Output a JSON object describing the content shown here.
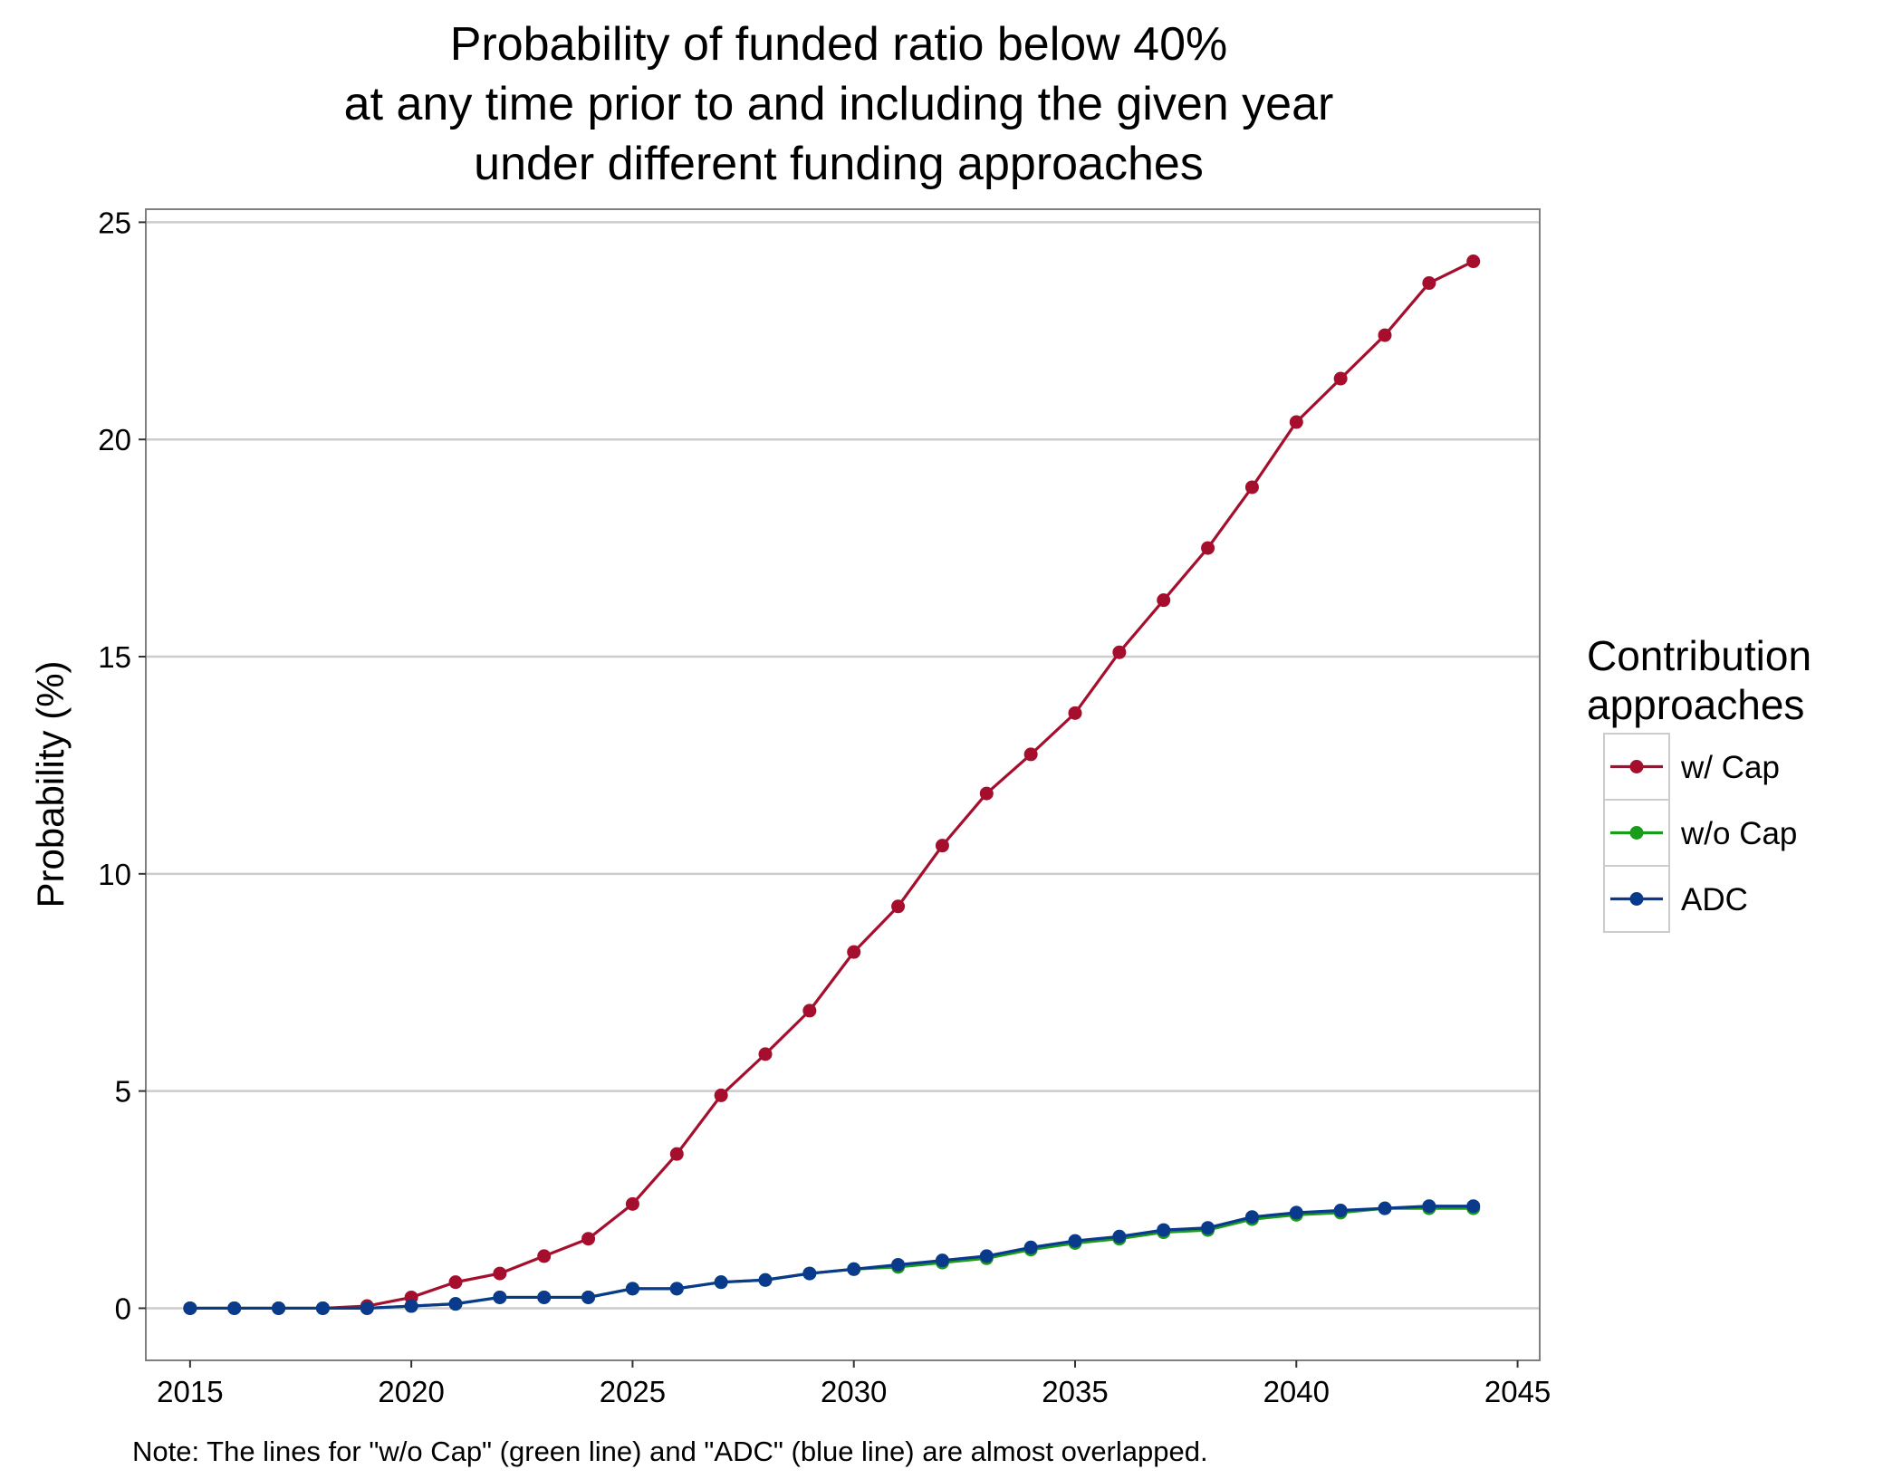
{
  "chart_data": {
    "type": "line",
    "title": [
      "Probability of funded ratio below 40%",
      "at any time prior to and including the given year",
      "under different funding approaches"
    ],
    "xlabel": "",
    "ylabel": "Probability (%)",
    "xlim": [
      2014,
      2045.5
    ],
    "ylim": [
      -1.2,
      25.3
    ],
    "xticks": [
      2015,
      2020,
      2025,
      2030,
      2035,
      2040,
      2045
    ],
    "yticks": [
      0,
      5,
      10,
      15,
      20,
      25
    ],
    "grid": "horizontal major",
    "legend": {
      "title": [
        "Contribution",
        "approaches"
      ],
      "position": "right"
    },
    "x": [
      2015,
      2016,
      2017,
      2018,
      2019,
      2020,
      2021,
      2022,
      2023,
      2024,
      2025,
      2026,
      2027,
      2028,
      2029,
      2030,
      2031,
      2032,
      2033,
      2034,
      2035,
      2036,
      2037,
      2038,
      2039,
      2040,
      2041,
      2042,
      2043,
      2044
    ],
    "series": [
      {
        "name": "w/ Cap",
        "color": "#A50F2D",
        "values": [
          0,
          0,
          0,
          0,
          0.05,
          0.25,
          0.6,
          0.8,
          1.2,
          1.6,
          2.4,
          3.55,
          4.9,
          5.85,
          6.85,
          8.2,
          9.25,
          10.65,
          11.85,
          12.75,
          13.7,
          15.1,
          16.3,
          17.5,
          18.9,
          20.4,
          21.4,
          22.4,
          23.6,
          24.1
        ]
      },
      {
        "name": "w/o Cap",
        "color": "#1A9C1A",
        "values": [
          0,
          0,
          0,
          0,
          0,
          0.05,
          0.1,
          0.25,
          0.25,
          0.25,
          0.45,
          0.45,
          0.6,
          0.65,
          0.8,
          0.9,
          0.95,
          1.05,
          1.15,
          1.35,
          1.5,
          1.6,
          1.75,
          1.8,
          2.05,
          2.15,
          2.2,
          2.3,
          2.3,
          2.3
        ]
      },
      {
        "name": "ADC",
        "color": "#0A3A8C",
        "values": [
          0,
          0,
          0,
          0,
          0,
          0.05,
          0.1,
          0.25,
          0.25,
          0.25,
          0.45,
          0.45,
          0.6,
          0.65,
          0.8,
          0.9,
          1.0,
          1.1,
          1.2,
          1.4,
          1.55,
          1.65,
          1.8,
          1.85,
          2.1,
          2.2,
          2.25,
          2.3,
          2.35,
          2.35
        ]
      }
    ],
    "note": "Note: The lines for \"w/o Cap\" (green line) and \"ADC\" (blue line) are almost overlapped."
  }
}
